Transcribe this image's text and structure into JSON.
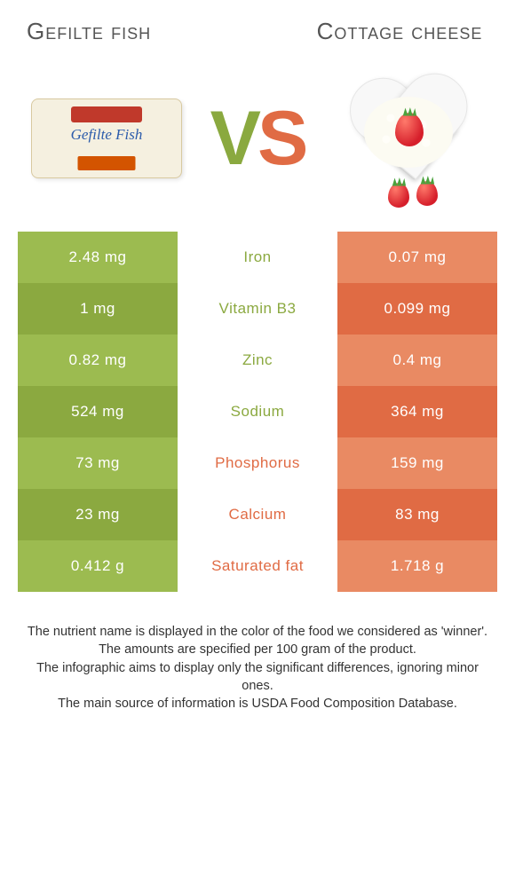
{
  "header": {
    "left_title": "Gefilte fish",
    "right_title": "Cottage cheese",
    "vs_label_v": "V",
    "vs_label_s": "S",
    "gefilte_package_text": "Gefilte Fish"
  },
  "colors": {
    "left_food": "#8ba940",
    "left_food_alt": "#9cbb50",
    "right_food": "#e06b44",
    "right_food_alt": "#e98a63",
    "text_white": "#ffffff",
    "background": "#ffffff"
  },
  "table": {
    "rows": [
      {
        "left": "2.48 mg",
        "nutrient": "Iron",
        "right": "0.07 mg",
        "winner": "left"
      },
      {
        "left": "1 mg",
        "nutrient": "Vitamin B3",
        "right": "0.099 mg",
        "winner": "left"
      },
      {
        "left": "0.82 mg",
        "nutrient": "Zinc",
        "right": "0.4 mg",
        "winner": "left"
      },
      {
        "left": "524 mg",
        "nutrient": "Sodium",
        "right": "364 mg",
        "winner": "left"
      },
      {
        "left": "73 mg",
        "nutrient": "Phosphorus",
        "right": "159 mg",
        "winner": "right"
      },
      {
        "left": "23 mg",
        "nutrient": "Calcium",
        "right": "83 mg",
        "winner": "right"
      },
      {
        "left": "0.412 g",
        "nutrient": "Saturated fat",
        "right": "1.718 g",
        "winner": "right"
      }
    ]
  },
  "footnotes": {
    "line1": "The nutrient name is displayed in the color of the food we considered as 'winner'.",
    "line2": "The amounts are specified per 100 gram of the product.",
    "line3": "The infographic aims to display only the significant differences, ignoring minor ones.",
    "line4": "The main source of information is USDA Food Composition Database."
  }
}
